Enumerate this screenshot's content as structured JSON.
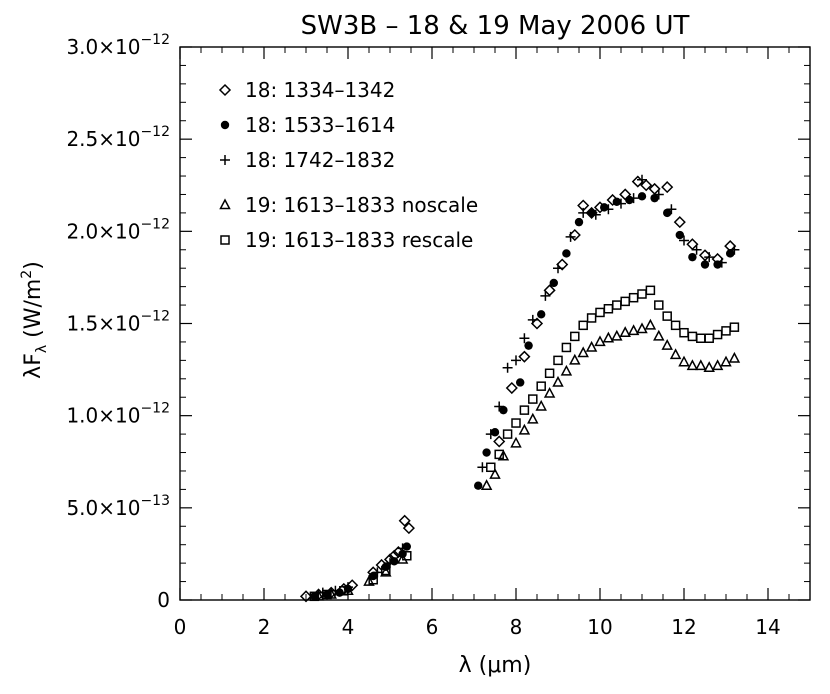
{
  "chart_data": {
    "type": "scatter",
    "title": "SW3B – 18 & 19 May 2006 UT",
    "xlabel_prefix": "λ (",
    "xlabel_unit": "μm",
    "xlabel_suffix": ")",
    "ylabel_main": "λF",
    "ylabel_sub": "λ",
    "ylabel_unit_open": " (W/m",
    "ylabel_unit_sup": "2",
    "ylabel_unit_close": ")",
    "xlim": [
      0,
      15
    ],
    "ylim": [
      0,
      3e-12
    ],
    "x_ticks": [
      {
        "value": 0,
        "label": "0"
      },
      {
        "value": 2,
        "label": "2"
      },
      {
        "value": 4,
        "label": "4"
      },
      {
        "value": 6,
        "label": "6"
      },
      {
        "value": 8,
        "label": "8"
      },
      {
        "value": 10,
        "label": "10"
      },
      {
        "value": 12,
        "label": "12"
      },
      {
        "value": 14,
        "label": "14"
      }
    ],
    "y_ticks": [
      {
        "value": 0,
        "mantissa": "0",
        "exp": ""
      },
      {
        "value": 5e-13,
        "mantissa": "5.0×10",
        "exp": "−13"
      },
      {
        "value": 1e-12,
        "mantissa": "1.0×10",
        "exp": "−12"
      },
      {
        "value": 1.5e-12,
        "mantissa": "1.5×10",
        "exp": "−12"
      },
      {
        "value": 2e-12,
        "mantissa": "2.0×10",
        "exp": "−12"
      },
      {
        "value": 2.5e-12,
        "mantissa": "2.5×10",
        "exp": "−12"
      },
      {
        "value": 3e-12,
        "mantissa": "3.0×10",
        "exp": "−12"
      }
    ],
    "series": [
      {
        "name": "18: 1334–1342",
        "marker": "diamond",
        "x": [
          3.0,
          3.3,
          3.6,
          3.9,
          4.1,
          4.6,
          4.8,
          5.0,
          5.1,
          5.2,
          5.35,
          5.45,
          7.6,
          7.9,
          8.2,
          8.5,
          8.8,
          9.1,
          9.4,
          9.6,
          9.8,
          10.0,
          10.3,
          10.6,
          10.9,
          11.1,
          11.3,
          11.6,
          11.9,
          12.2,
          12.5,
          12.8,
          13.1
        ],
        "y": [
          2e-14,
          3e-14,
          4e-14,
          6e-14,
          8e-14,
          1.5e-13,
          1.9e-13,
          2.2e-13,
          2.4e-13,
          2.6e-13,
          4.3e-13,
          3.9e-13,
          8.6e-13,
          1.15e-12,
          1.32e-12,
          1.5e-12,
          1.68e-12,
          1.82e-12,
          1.98e-12,
          2.14e-12,
          2.1e-12,
          2.13e-12,
          2.17e-12,
          2.2e-12,
          2.27e-12,
          2.25e-12,
          2.23e-12,
          2.24e-12,
          2.05e-12,
          1.93e-12,
          1.87e-12,
          1.85e-12,
          1.92e-12
        ]
      },
      {
        "name": "18: 1533–1614",
        "marker": "circle",
        "x": [
          3.2,
          3.5,
          3.8,
          4.0,
          4.6,
          4.9,
          5.1,
          5.3,
          5.4,
          7.1,
          7.3,
          7.5,
          7.7,
          8.1,
          8.3,
          8.6,
          8.9,
          9.2,
          9.5,
          9.8,
          10.1,
          10.4,
          10.7,
          11.0,
          11.3,
          11.6,
          11.9,
          12.2,
          12.5,
          12.8,
          13.1
        ],
        "y": [
          2e-14,
          3e-14,
          4e-14,
          6e-14,
          1.3e-13,
          1.8e-13,
          2.1e-13,
          2.5e-13,
          2.9e-13,
          6.2e-13,
          8e-13,
          9.1e-13,
          1.03e-12,
          1.18e-12,
          1.38e-12,
          1.55e-12,
          1.72e-12,
          1.88e-12,
          2.05e-12,
          2.1e-12,
          2.13e-12,
          2.16e-12,
          2.17e-12,
          2.19e-12,
          2.18e-12,
          2.1e-12,
          1.98e-12,
          1.86e-12,
          1.82e-12,
          1.82e-12,
          1.88e-12
        ]
      },
      {
        "name": "18: 1742–1832",
        "marker": "plus",
        "x": [
          3.4,
          3.7,
          4.0,
          4.7,
          5.0,
          5.3,
          7.2,
          7.4,
          7.6,
          7.8,
          8.0,
          8.2,
          8.4,
          8.7,
          9.0,
          9.3,
          9.6,
          9.9,
          10.2,
          10.5,
          10.8,
          11.0,
          11.4,
          11.7,
          12.0,
          12.3,
          12.6,
          12.9,
          13.2
        ],
        "y": [
          4e-14,
          5e-14,
          7e-14,
          1.5e-13,
          2e-13,
          2.8e-13,
          7.2e-13,
          9e-13,
          1.05e-12,
          1.26e-12,
          1.3e-12,
          1.42e-12,
          1.52e-12,
          1.65e-12,
          1.8e-12,
          1.97e-12,
          2.1e-12,
          2.09e-12,
          2.12e-12,
          2.15e-12,
          2.18e-12,
          2.28e-12,
          2.2e-12,
          2.12e-12,
          1.95e-12,
          1.9e-12,
          1.86e-12,
          1.83e-12,
          1.9e-12
        ]
      },
      {
        "name": "19: 1613–1833 noscale",
        "marker": "triangle",
        "x": [
          3.3,
          3.6,
          4.0,
          4.5,
          4.9,
          5.3,
          7.3,
          7.5,
          7.7,
          8.0,
          8.2,
          8.4,
          8.6,
          8.8,
          9.0,
          9.2,
          9.4,
          9.6,
          9.8,
          10.0,
          10.2,
          10.4,
          10.6,
          10.8,
          11.0,
          11.2,
          11.4,
          11.6,
          11.8,
          12.0,
          12.2,
          12.4,
          12.6,
          12.8,
          13.0,
          13.2
        ],
        "y": [
          2e-14,
          3e-14,
          5e-14,
          1e-13,
          1.5e-13,
          2.2e-13,
          6.2e-13,
          6.8e-13,
          7.8e-13,
          8.5e-13,
          9.2e-13,
          9.8e-13,
          1.05e-12,
          1.12e-12,
          1.18e-12,
          1.24e-12,
          1.3e-12,
          1.34e-12,
          1.37e-12,
          1.4e-12,
          1.42e-12,
          1.43e-12,
          1.45e-12,
          1.46e-12,
          1.47e-12,
          1.49e-12,
          1.43e-12,
          1.38e-12,
          1.33e-12,
          1.29e-12,
          1.27e-12,
          1.27e-12,
          1.26e-12,
          1.27e-12,
          1.29e-12,
          1.31e-12
        ]
      },
      {
        "name": "19: 1613–1833 rescale",
        "marker": "square",
        "x": [
          3.2,
          3.5,
          3.9,
          4.6,
          4.9,
          5.4,
          7.4,
          7.6,
          7.8,
          8.0,
          8.2,
          8.4,
          8.6,
          8.8,
          9.0,
          9.2,
          9.4,
          9.6,
          9.8,
          10.0,
          10.2,
          10.4,
          10.6,
          10.8,
          11.0,
          11.2,
          11.4,
          11.6,
          11.8,
          12.0,
          12.2,
          12.4,
          12.6,
          12.8,
          13.0,
          13.2
        ],
        "y": [
          2e-14,
          3e-14,
          5e-14,
          1.1e-13,
          1.6e-13,
          2.4e-13,
          7.2e-13,
          7.9e-13,
          9e-13,
          9.6e-13,
          1.03e-12,
          1.09e-12,
          1.16e-12,
          1.23e-12,
          1.3e-12,
          1.37e-12,
          1.43e-12,
          1.49e-12,
          1.53e-12,
          1.56e-12,
          1.58e-12,
          1.6e-12,
          1.62e-12,
          1.64e-12,
          1.66e-12,
          1.68e-12,
          1.6e-12,
          1.54e-12,
          1.49e-12,
          1.45e-12,
          1.43e-12,
          1.42e-12,
          1.42e-12,
          1.44e-12,
          1.46e-12,
          1.48e-12
        ]
      }
    ],
    "legend_position": "top-left"
  }
}
